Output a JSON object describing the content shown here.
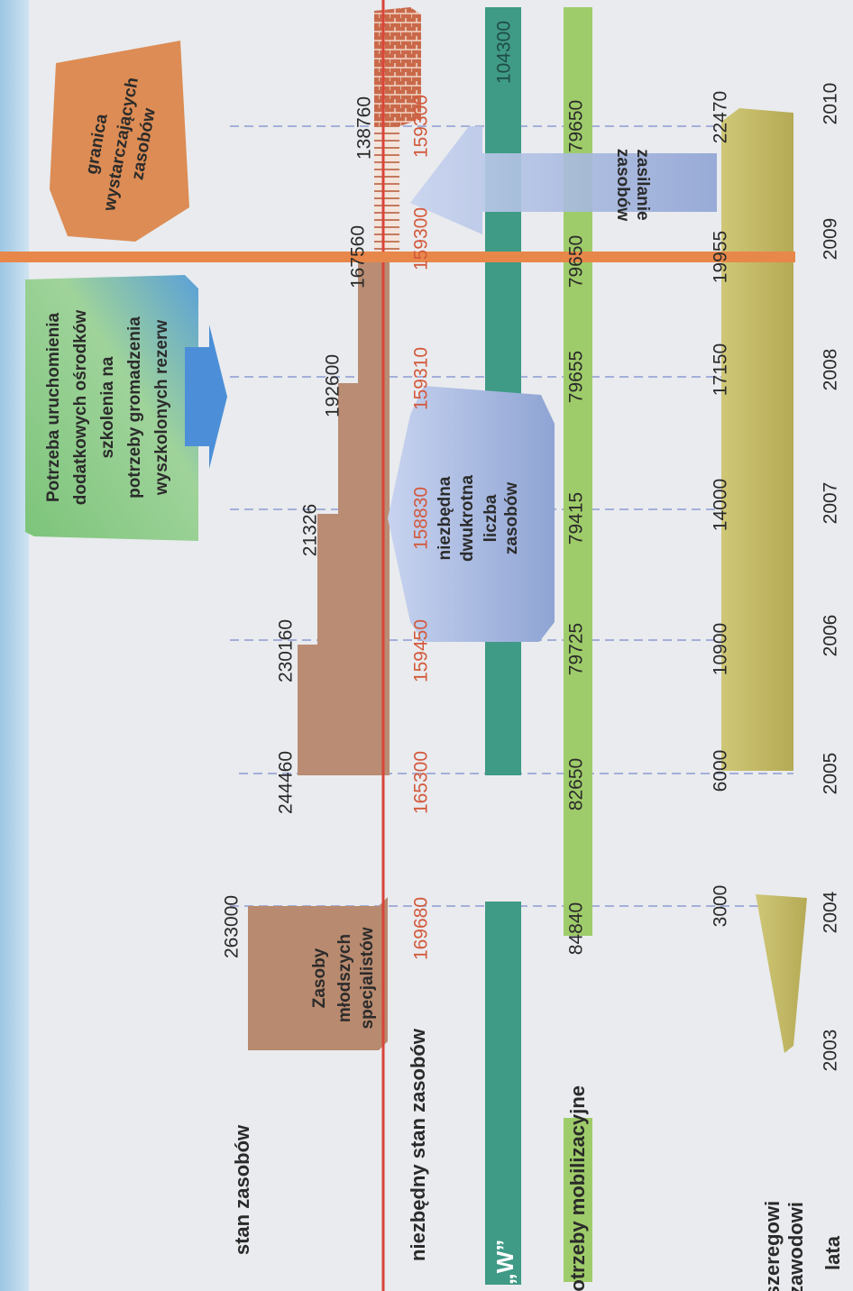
{
  "rows": [
    {
      "label": "stan zasobów",
      "values": [
        263000,
        244460,
        230160,
        21326,
        192600,
        167560,
        138760
      ]
    },
    {
      "label": "niezbędny stan zasobów",
      "values": [
        169680,
        165300,
        159450,
        158830,
        159310,
        159300,
        159300
      ]
    },
    {
      "label": "„W”",
      "values": [
        104300
      ]
    },
    {
      "label": "potrzeby mobilizacyjne",
      "values": [
        84840,
        82650,
        79725,
        79415,
        79655,
        79650,
        79650
      ]
    },
    {
      "label": [
        "szeregowi",
        "zawodowi"
      ],
      "values": [
        3000,
        6000,
        10900,
        14000,
        17150,
        19955,
        22470
      ]
    },
    {
      "label": "lata",
      "values": [
        2003,
        2004,
        2005,
        2006,
        2007,
        2008,
        2009,
        2010
      ]
    }
  ],
  "callouts": [
    {
      "lines": [
        "Zasoby",
        "młodszych",
        "specjalistów"
      ]
    },
    {
      "lines": [
        "niezbędna",
        "dwukrotna",
        "liczba",
        "zasobów"
      ]
    },
    {
      "lines": [
        "Potrzeba uruchomienia",
        "dodatkowych ośrodków",
        "szkolenia na",
        "potrzeby gromadzenia",
        "wyszkolonych rezerw"
      ]
    },
    {
      "lines": [
        "granica",
        "wystarczających",
        "zasobów"
      ]
    },
    {
      "lines": [
        "zasilanie",
        "zasobów"
      ]
    }
  ]
}
